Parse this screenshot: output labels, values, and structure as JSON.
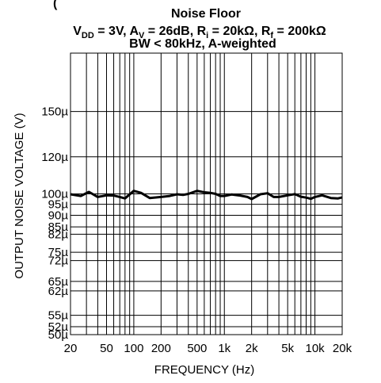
{
  "chart_data": {
    "type": "line",
    "title_partial": "(",
    "title": "Noise Floor",
    "conditions_line1": {
      "vdd_sym": "V",
      "vdd_sub": "DD",
      "vdd_rest": " = 3V, A",
      "av_sub": "V",
      "av_rest": " = 26dB, R",
      "ri_sub": "i",
      "ri_rest": " = 20kΩ, R",
      "rf_sub": "f",
      "rf_rest": " = 200kΩ"
    },
    "conditions_line2": "BW < 80kHz, A-weighted",
    "xlabel": "FREQUENCY (Hz)",
    "ylabel": "OUTPUT NOISE VOLTAGE (V)",
    "x_scale": "log",
    "y_scale": "log",
    "xlim": [
      20,
      20000
    ],
    "ylim": [
      5e-05,
      0.0002
    ],
    "grid": true,
    "x_ticks": [
      {
        "value": 20,
        "label": "20"
      },
      {
        "value": 50,
        "label": "50"
      },
      {
        "value": 100,
        "label": "100"
      },
      {
        "value": 200,
        "label": "200"
      },
      {
        "value": 500,
        "label": "500"
      },
      {
        "value": 1000,
        "label": "1k"
      },
      {
        "value": 2000,
        "label": "2k"
      },
      {
        "value": 5000,
        "label": "5k"
      },
      {
        "value": 10000,
        "label": "10k"
      },
      {
        "value": 20000,
        "label": "20k"
      }
    ],
    "x_gridlines": [
      30,
      40,
      60,
      70,
      80,
      90,
      300,
      400,
      600,
      700,
      800,
      900,
      3000,
      4000,
      6000,
      7000,
      8000,
      9000
    ],
    "y_ticks": [
      {
        "value": 0.00015,
        "label": "150µ"
      },
      {
        "value": 0.00012,
        "label": "120µ"
      },
      {
        "value": 0.0001,
        "label": "100µ"
      },
      {
        "value": 9.5e-05,
        "label": "95µ"
      },
      {
        "value": 9e-05,
        "label": "90µ"
      },
      {
        "value": 8.5e-05,
        "label": "85µ"
      },
      {
        "value": 8.2e-05,
        "label": "82µ"
      },
      {
        "value": 7.5e-05,
        "label": "75µ"
      },
      {
        "value": 7.2e-05,
        "label": "72µ"
      },
      {
        "value": 6.5e-05,
        "label": "65µ"
      },
      {
        "value": 6.2e-05,
        "label": "62µ"
      },
      {
        "value": 5.5e-05,
        "label": "55µ"
      },
      {
        "value": 5.2e-05,
        "label": "52µ"
      },
      {
        "value": 5e-05,
        "label": "50µ"
      }
    ],
    "y_gridlines_extra": [
      0.0002
    ],
    "series": [
      {
        "color": "#000000",
        "x": [
          20,
          26,
          32,
          40,
          50,
          60,
          70,
          80,
          100,
          120,
          150,
          200,
          250,
          300,
          350,
          400,
          500,
          600,
          700,
          800,
          900,
          1000,
          1200,
          1500,
          1800,
          2000,
          2500,
          3000,
          3500,
          4000,
          5000,
          6000,
          7000,
          8000,
          9000,
          10000,
          12000,
          15000,
          18000,
          20000
        ],
        "y": [
          9.98e-05,
          9.9e-05,
          0.000101,
          9.85e-05,
          9.93e-05,
          9.92e-05,
          9.85e-05,
          9.78e-05,
          0.0001015,
          0.0001005,
          9.8e-05,
          9.85e-05,
          9.9e-05,
          9.98e-05,
          9.95e-05,
          0.0001,
          0.0001015,
          0.0001008,
          0.0001005,
          0.0001,
          9.9e-05,
          9.9e-05,
          9.97e-05,
          9.92e-05,
          9.85e-05,
          9.75e-05,
          9.98e-05,
          0.0001003,
          9.85e-05,
          9.85e-05,
          9.93e-05,
          9.99e-05,
          9.86e-05,
          9.82e-05,
          9.76e-05,
          9.85e-05,
          9.93e-05,
          9.8e-05,
          9.78e-05,
          9.83e-05
        ]
      }
    ]
  }
}
